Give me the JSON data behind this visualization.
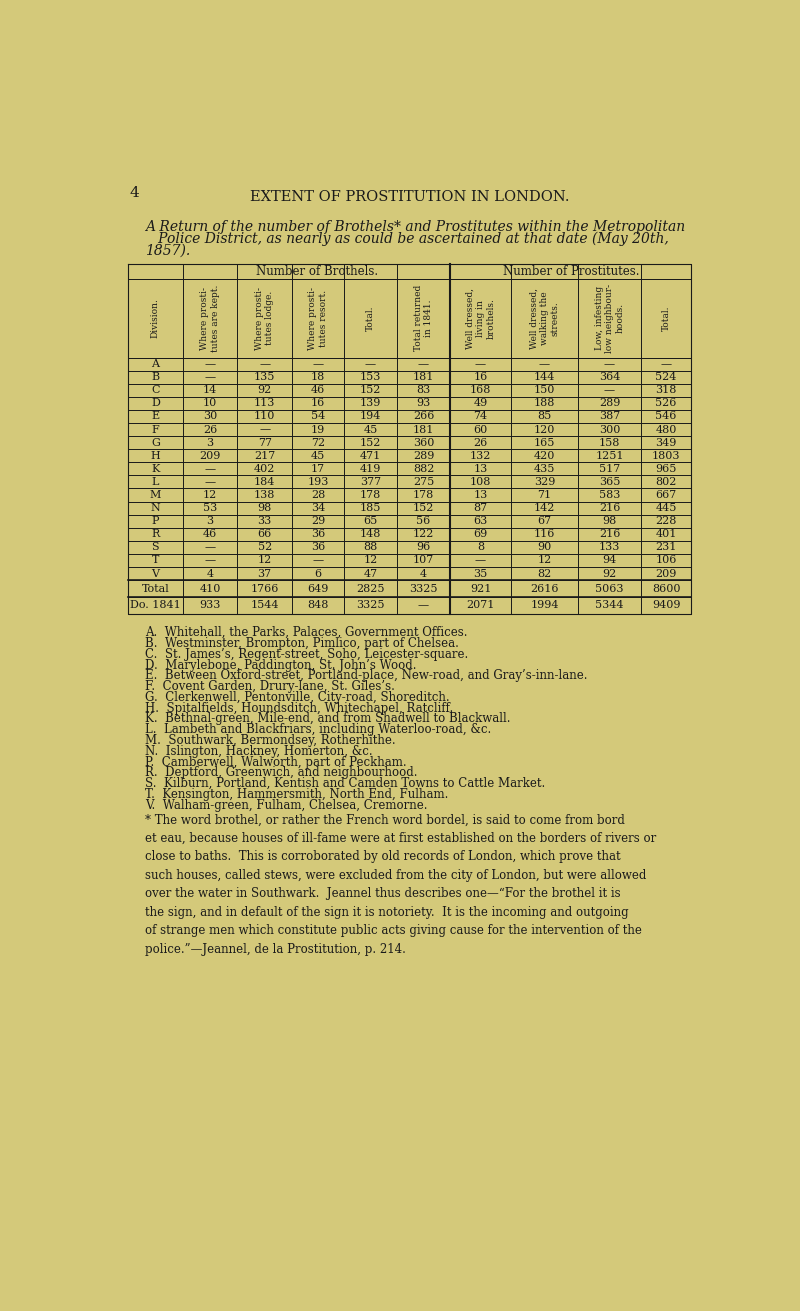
{
  "bg_color": "#d4c97a",
  "page_number": "4",
  "header": "EXTENT OF PROSTITUTION IN LONDON.",
  "subtitle_line1": "A Return of the number of Brothels* and Prostitutes within the Metropolitan",
  "subtitle_line2": "   Police District, as nearly as could be ascertained at that date (May 20th,",
  "subtitle_line3": "1857).",
  "col_group1_header": "Number of Brothels.",
  "col_group2_header": "Number of Prostitutes.",
  "col_header_texts": [
    "Division.",
    "Where prosti-\ntutes are kept.",
    "Where prosti-\ntutes lodge.",
    "Where prosti-\ntutes resort.",
    "Total.",
    "Total returned\nin 1841.",
    "Well dressed,\nliving in\nbrothels.",
    "Well dressed,\nwalking the\nstreets.",
    "Low, infesting\nlow neighbour-\nhoods.",
    "Total."
  ],
  "data": [
    [
      "A",
      "—",
      "—",
      "—",
      "—",
      "—",
      "—",
      "—",
      "—",
      "—"
    ],
    [
      "B",
      "—",
      "135",
      "18",
      "153",
      "181",
      "16",
      "144",
      "364",
      "524"
    ],
    [
      "C",
      "14",
      "92",
      "46",
      "152",
      "83",
      "168",
      "150",
      "—",
      "318"
    ],
    [
      "D",
      "10",
      "113",
      "16",
      "139",
      "93",
      "49",
      "188",
      "289",
      "526"
    ],
    [
      "E",
      "30",
      "110",
      "54",
      "194",
      "266",
      "74",
      "85",
      "387",
      "546"
    ],
    [
      "F",
      "26",
      "—",
      "19",
      "45",
      "181",
      "60",
      "120",
      "300",
      "480"
    ],
    [
      "G",
      "3",
      "77",
      "72",
      "152",
      "360",
      "26",
      "165",
      "158",
      "349"
    ],
    [
      "H",
      "209",
      "217",
      "45",
      "471",
      "289",
      "132",
      "420",
      "1251",
      "1803"
    ],
    [
      "K",
      "—",
      "402",
      "17",
      "419",
      "882",
      "13",
      "435",
      "517",
      "965"
    ],
    [
      "L",
      "—",
      "184",
      "193",
      "377",
      "275",
      "108",
      "329",
      "365",
      "802"
    ],
    [
      "M",
      "12",
      "138",
      "28",
      "178",
      "178",
      "13",
      "71",
      "583",
      "667"
    ],
    [
      "N",
      "53",
      "98",
      "34",
      "185",
      "152",
      "87",
      "142",
      "216",
      "445"
    ],
    [
      "P",
      "3",
      "33",
      "29",
      "65",
      "56",
      "63",
      "67",
      "98",
      "228"
    ],
    [
      "R",
      "46",
      "66",
      "36",
      "148",
      "122",
      "69",
      "116",
      "216",
      "401"
    ],
    [
      "S",
      "—",
      "52",
      "36",
      "88",
      "96",
      "8",
      "90",
      "133",
      "231"
    ],
    [
      "T",
      "—",
      "12",
      "—",
      "12",
      "107",
      "—",
      "12",
      "94",
      "106"
    ],
    [
      "V",
      "4",
      "37",
      "6",
      "47",
      "4",
      "35",
      "82",
      "92",
      "209"
    ]
  ],
  "total_row": [
    "Total",
    "410",
    "1766",
    "649",
    "2825",
    "3325",
    "921",
    "2616",
    "5063",
    "8600"
  ],
  "do1841_row": [
    "Do. 1841",
    "933",
    "1544",
    "848",
    "3325",
    "—",
    "2071",
    "1994",
    "5344",
    "9409"
  ],
  "footnotes": [
    "A.  Whitehall, the Parks, Palaces, Government Offices.",
    "B.  Westminster, Brompton, Pimlico, part of Chelsea.",
    "C.  St. James’s, Regent-street, Soho, Leicester-square.",
    "D.  Marylebone, Paddington, St. John’s Wood.",
    "E.  Between Oxford-street, Portland-place, New-road, and Gray’s-inn-lane.",
    "F.  Covent Garden, Drury-lane, St. Giles’s.",
    "G.  Clerkenwell, Pentonville, City-road, Shoreditch.",
    "H.  Spitalfields, Houndsditch, Whitechapel, Ratcliff.",
    "K.  Bethnal-green, Mile-end, and from Shadwell to Blackwall.",
    "L.  Lambeth and Blackfriars, including Waterloo-road, &c.",
    "M.  Southwark, Bermondsey, Rotherhithe.",
    "N.  Islington, Hackney, Homerton, &c.",
    "P.  Camberwell, Walworth, part of Peckham.",
    "R.  Deptford, Greenwich, and neighbourhood.",
    "S.  Kilburn, Portland, Kentish and Camden Towns to Cattle Market.",
    "T.  Kensington, Hammersmith, North End, Fulham.",
    "V.  Walham-green, Fulham, Chelsea, Cremorne."
  ],
  "footnote_star_parts": [
    [
      "* The word brothel, or rather the French word bordel, is said to come from ",
      "normal",
      "bord"
    ],
    [
      "et eau",
      "italic_start"
    ],
    [
      ", because houses of ill-fame were at first established on the borders of rivers or\nclose to baths.  This is corroborated by old records of London, which prove that\nsuch houses, called stews, were excluded from the city of London, but were allowed\nover the water in Southwark.  Jeannel thus describes one—“For the brothel it is\nthe sign, and in default of the sign it is notoriety.  It is the incoming and outgoing\nof strange men which constitute public acts giving cause for the intervention of the\npolice.”—Jeannel, de la Prostitution, p. 214.",
      "normal"
    ]
  ],
  "footnote_star_text": "* The word brothel, or rather the French word bordel, is said to come from bord\net eau, because houses of ill-fame were at first established on the borders of rivers or\nclose to baths.  This is corroborated by old records of London, which prove that\nsuch houses, called stews, were excluded from the city of London, but were allowed\nover the water in Southwark.  Jeannel thus describes one—“For the brothel it is\nthe sign, and in default of the sign it is notoriety.  It is the incoming and outgoing\nof strange men which constitute public acts giving cause for the intervention of the\npolice.”—Jeannel, de la Prostitution, p. 214."
}
